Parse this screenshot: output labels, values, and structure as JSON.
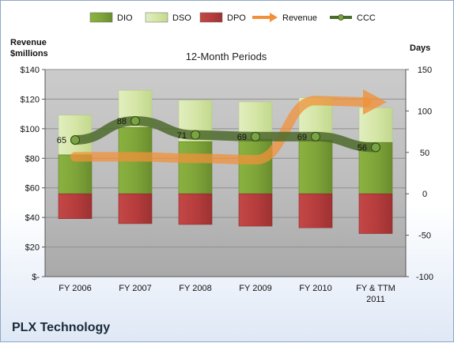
{
  "company": "PLX Technology",
  "chart_data": {
    "type": "bar",
    "title": "12-Month Periods",
    "categories": [
      "FY 2006",
      "FY 2007",
      "FY 2008",
      "FY 2009",
      "FY 2010",
      "FY & TTM 2011"
    ],
    "category_lines": [
      [
        "FY 2006"
      ],
      [
        "FY 2007"
      ],
      [
        "FY 2008"
      ],
      [
        "FY 2009"
      ],
      [
        "FY 2010"
      ],
      [
        "FY & TTM",
        "2011"
      ]
    ],
    "y_left": {
      "label_lines": [
        "Revenue",
        "$millions"
      ],
      "ticks": [
        0,
        20,
        40,
        60,
        80,
        100,
        120,
        140
      ],
      "tick_labels": [
        "$-",
        "$20",
        "$40",
        "$60",
        "$80",
        "$100",
        "$120",
        "$140"
      ],
      "ylim": [
        0,
        140
      ]
    },
    "y_right": {
      "label": "Days",
      "ticks": [
        -100,
        -50,
        0,
        50,
        100,
        150
      ],
      "tick_labels": [
        "-100",
        "-50",
        "0",
        "50",
        "100",
        "150"
      ],
      "ylim": [
        -100,
        150
      ]
    },
    "series": [
      {
        "name": "DIO",
        "type": "bar",
        "axis": "right",
        "values": [
          47,
          80,
          63,
          66,
          65,
          62
        ]
      },
      {
        "name": "DSO",
        "type": "bar",
        "axis": "right",
        "values": [
          48,
          45,
          50,
          45,
          51,
          42
        ]
      },
      {
        "name": "DPO",
        "type": "bar",
        "axis": "right",
        "values": [
          30,
          36,
          37,
          39,
          41,
          48
        ]
      },
      {
        "name": "Revenue",
        "type": "arrow",
        "axis": "left",
        "values": [
          81,
          81,
          80,
          79,
          119,
          118
        ]
      },
      {
        "name": "CCC",
        "type": "line",
        "axis": "right",
        "values": [
          65,
          88,
          71,
          69,
          69,
          56
        ]
      }
    ],
    "data_labels": [
      "65",
      "88",
      "71",
      "69",
      "69",
      "56"
    ],
    "legend": {
      "position": "top",
      "items": [
        {
          "name": "DIO",
          "color": "#7a9e35"
        },
        {
          "name": "DSO",
          "color": "#d5e6a6"
        },
        {
          "name": "DPO",
          "color": "#b73d3d"
        },
        {
          "name": "Revenue",
          "color": "#f0913a"
        },
        {
          "name": "CCC",
          "color": "#4a6b2a"
        }
      ]
    },
    "colors": {
      "dio": "#7a9e35",
      "dso": "#d5e6a6",
      "dpo": "#b73d3d",
      "revenue": "#f0913a",
      "ccc": "#4d6a2b"
    },
    "grid": true
  }
}
